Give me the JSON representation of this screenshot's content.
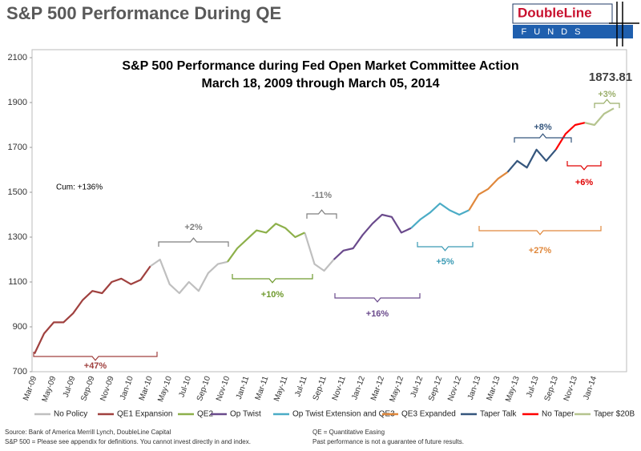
{
  "header": {
    "title": "S&P 500 Performance During QE",
    "logo_name": "DoubleLine",
    "logo_sub": "FUNDS"
  },
  "chart_data": {
    "type": "line",
    "title": "S&P 500 Performance during Fed Open Market Committee Action",
    "subtitle": "March 18, 2009 through March 05, 2014",
    "cumulative_note": "Cum: +136%",
    "ylim": [
      700,
      2100
    ],
    "yticks": [
      700,
      900,
      1100,
      1300,
      1500,
      1700,
      1900,
      2100
    ],
    "xticks": [
      "Mar-09",
      "May-09",
      "Jul-09",
      "Sep-09",
      "Nov-09",
      "Jan-10",
      "Mar-10",
      "May-10",
      "Jul-10",
      "Sep-10",
      "Nov-10",
      "Jan-11",
      "Mar-11",
      "May-11",
      "Jul-11",
      "Sep-11",
      "Nov-11",
      "Jan-12",
      "Mar-12",
      "May-12",
      "Jul-12",
      "Sep-12",
      "Nov-12",
      "Jan-13",
      "Mar-13",
      "May-13",
      "Jul-13",
      "Sep-13",
      "Nov-13",
      "Jan-14"
    ],
    "series": [
      {
        "name": "No Policy",
        "color": "#bfbfbf",
        "x": [
          "Mar-10",
          "Apr-10",
          "May-10",
          "Jun-10",
          "Jul-10",
          "Aug-10",
          "Sep-10",
          "Oct-10",
          "Nov-10",
          "Dec-10",
          "Jan-11",
          "Feb-11",
          "Mar-11",
          "Apr-11",
          "May-11",
          "Jun-11",
          "Jul-11",
          "Aug-11",
          "Sep-11",
          "Oct-11"
        ],
        "values": [
          1170,
          1200,
          1090,
          1050,
          1100,
          1060,
          1140,
          1180,
          1190,
          null,
          null,
          null,
          null,
          null,
          null,
          null,
          1320,
          1180,
          1150,
          1200
        ]
      },
      {
        "name": "QE1 Expansion",
        "color": "#a0413f",
        "x": [
          "Mar-09",
          "Apr-09",
          "May-09",
          "Jun-09",
          "Jul-09",
          "Aug-09",
          "Sep-09",
          "Oct-09",
          "Nov-09",
          "Dec-09",
          "Jan-10",
          "Feb-10",
          "Mar-10"
        ],
        "values": [
          780,
          870,
          920,
          920,
          960,
          1020,
          1060,
          1050,
          1100,
          1115,
          1090,
          1110,
          1170
        ]
      },
      {
        "name": "QE2",
        "color": "#8db04a",
        "x": [
          "Nov-10",
          "Dec-10",
          "Jan-11",
          "Feb-11",
          "Mar-11",
          "Apr-11",
          "May-11",
          "Jun-11",
          "Jul-11"
        ],
        "values": [
          1190,
          1250,
          1290,
          1330,
          1320,
          1360,
          1340,
          1300,
          1320
        ]
      },
      {
        "name": "Op Twist",
        "color": "#6a4a8c",
        "x": [
          "Oct-11",
          "Nov-11",
          "Dec-11",
          "Jan-12",
          "Feb-12",
          "Mar-12",
          "Apr-12",
          "May-12",
          "Jun-12"
        ],
        "values": [
          1200,
          1240,
          1250,
          1310,
          1360,
          1400,
          1390,
          1320,
          1340
        ]
      },
      {
        "name": "Op Twist  Extension and QE3",
        "color": "#4bacc6",
        "x": [
          "Jun-12",
          "Jul-12",
          "Aug-12",
          "Sep-12",
          "Oct-12",
          "Nov-12",
          "Dec-12"
        ],
        "values": [
          1340,
          1380,
          1410,
          1450,
          1420,
          1400,
          1420
        ]
      },
      {
        "name": "QE3 Expanded",
        "color": "#e0883c",
        "x": [
          "Dec-12",
          "Jan-13",
          "Feb-13",
          "Mar-13",
          "Apr-13"
        ],
        "values": [
          1420,
          1490,
          1515,
          1560,
          1590
        ]
      },
      {
        "name": "Taper Talk",
        "color": "#35567d",
        "x": [
          "Apr-13",
          "May-13",
          "Jun-13",
          "Jul-13",
          "Aug-13",
          "Sep-13"
        ],
        "values": [
          1590,
          1640,
          1610,
          1690,
          1640,
          1690
        ]
      },
      {
        "name": "No Taper",
        "color": "#ff0000",
        "x": [
          "Sep-13",
          "Oct-13",
          "Nov-13",
          "Dec-13"
        ],
        "values": [
          1690,
          1760,
          1800,
          1810
        ]
      },
      {
        "name": "Taper $20B",
        "color": "#b5c48e",
        "x": [
          "Dec-13",
          "Jan-14",
          "Feb-14",
          "Mar-14"
        ],
        "values": [
          1810,
          1800,
          1850,
          1873.81
        ]
      }
    ],
    "annotations": [
      {
        "text": "+47%",
        "color": "#a0413f"
      },
      {
        "text": "+2%",
        "color": "#7f7f7f"
      },
      {
        "text": "+10%",
        "color": "#6f9a2e"
      },
      {
        "text": "-11%",
        "color": "#7f7f7f"
      },
      {
        "text": "+16%",
        "color": "#6a4a8c"
      },
      {
        "text": "+5%",
        "color": "#3a9ab4"
      },
      {
        "text": "+27%",
        "color": "#e0883c"
      },
      {
        "text": "+8%",
        "color": "#35567d"
      },
      {
        "text": "+6%",
        "color": "#e00000"
      },
      {
        "text": "+3%",
        "color": "#9aae6a"
      }
    ]
  },
  "footer": {
    "source": "Source: Bank of America Merrill Lynch, DoubleLine Capital",
    "definition": "S&P 500 = Please see appendix for definitions. You cannot invest directly in and index.",
    "qe_note": "QE = Quantitative Easing",
    "disclaimer": "Past performance is not a guarantee of future results."
  }
}
